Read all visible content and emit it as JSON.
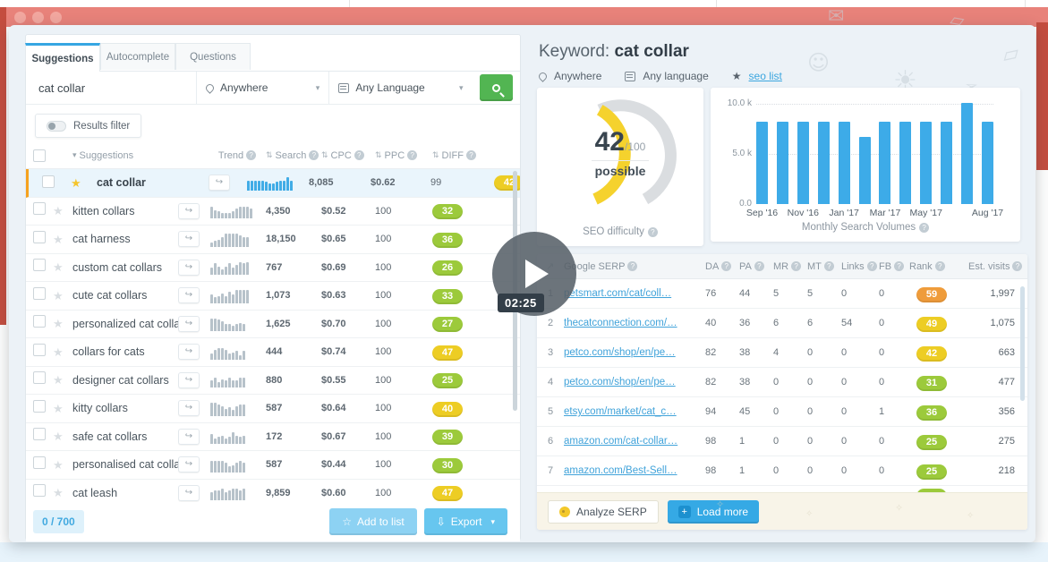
{
  "page": {
    "video_time": "02:25"
  },
  "left_panel": {
    "tabs": [
      {
        "label": "Suggestions",
        "active": true
      },
      {
        "label": "Autocomplete",
        "active": false
      },
      {
        "label": "Questions",
        "active": false
      }
    ],
    "search": {
      "query": "cat collar",
      "location": "Anywhere",
      "language": "Any Language"
    },
    "results_filter_label": "Results filter",
    "table": {
      "headers": {
        "suggestions": "Suggestions",
        "trend": "Trend",
        "search": "Search",
        "cpc": "CPC",
        "ppc": "PPC",
        "diff": "DIFF"
      },
      "rows": [
        {
          "keyword": "cat collar",
          "starred": true,
          "selected": true,
          "trend": [
            7,
            7,
            7,
            7,
            7,
            6,
            5,
            5,
            6,
            7,
            7,
            9,
            7
          ],
          "search": "8,085",
          "cpc": "$0.62",
          "ppc": "99",
          "diff": "42",
          "diff_color": "yellow"
        },
        {
          "keyword": "kitten collars",
          "starred": false,
          "selected": false,
          "trend": [
            8,
            6,
            5,
            4,
            4,
            4,
            5,
            7,
            8,
            8,
            8,
            7
          ],
          "search": "4,350",
          "cpc": "$0.52",
          "ppc": "100",
          "diff": "32",
          "diff_color": "green"
        },
        {
          "keyword": "cat harness",
          "starred": false,
          "selected": false,
          "trend": [
            3,
            4,
            5,
            7,
            9,
            9,
            9,
            9,
            8,
            7,
            7
          ],
          "search": "18,150",
          "cpc": "$0.65",
          "ppc": "100",
          "diff": "36",
          "diff_color": "green"
        },
        {
          "keyword": "custom cat collars",
          "starred": false,
          "selected": false,
          "trend": [
            5,
            8,
            6,
            4,
            6,
            8,
            5,
            7,
            9,
            8,
            9
          ],
          "search": "767",
          "cpc": "$0.69",
          "ppc": "100",
          "diff": "26",
          "diff_color": "green"
        },
        {
          "keyword": "cute cat collars",
          "starred": false,
          "selected": false,
          "trend": [
            6,
            4,
            5,
            7,
            5,
            8,
            6,
            9,
            9,
            9,
            9
          ],
          "search": "1,073",
          "cpc": "$0.63",
          "ppc": "100",
          "diff": "33",
          "diff_color": "green"
        },
        {
          "keyword": "personalized cat collars",
          "starred": false,
          "selected": false,
          "trend": [
            9,
            9,
            8,
            7,
            5,
            5,
            4,
            5,
            6,
            5
          ],
          "search": "1,625",
          "cpc": "$0.70",
          "ppc": "100",
          "diff": "27",
          "diff_color": "green"
        },
        {
          "keyword": "collars for cats",
          "starred": false,
          "selected": false,
          "trend": [
            4,
            7,
            8,
            8,
            7,
            4,
            5,
            6,
            3,
            6
          ],
          "search": "444",
          "cpc": "$0.74",
          "ppc": "100",
          "diff": "47",
          "diff_color": "yellow"
        },
        {
          "keyword": "designer cat collars",
          "starred": false,
          "selected": false,
          "trend": [
            5,
            7,
            4,
            6,
            5,
            7,
            5,
            5,
            7,
            7
          ],
          "search": "880",
          "cpc": "$0.55",
          "ppc": "100",
          "diff": "25",
          "diff_color": "green"
        },
        {
          "keyword": "kitty collars",
          "starred": false,
          "selected": false,
          "trend": [
            9,
            9,
            8,
            7,
            5,
            6,
            4,
            7,
            8,
            8
          ],
          "search": "587",
          "cpc": "$0.64",
          "ppc": "100",
          "diff": "40",
          "diff_color": "yellow"
        },
        {
          "keyword": "safe cat collars",
          "starred": false,
          "selected": false,
          "trend": [
            7,
            4,
            5,
            6,
            4,
            5,
            8,
            6,
            5,
            6
          ],
          "search": "172",
          "cpc": "$0.67",
          "ppc": "100",
          "diff": "39",
          "diff_color": "green"
        },
        {
          "keyword": "personalised cat collars",
          "starred": false,
          "selected": false,
          "trend": [
            8,
            8,
            8,
            8,
            7,
            4,
            5,
            7,
            8,
            7
          ],
          "search": "587",
          "cpc": "$0.44",
          "ppc": "100",
          "diff": "30",
          "diff_color": "green"
        },
        {
          "keyword": "cat leash",
          "starred": false,
          "selected": false,
          "trend": [
            6,
            7,
            7,
            8,
            6,
            7,
            8,
            8,
            7,
            8
          ],
          "search": "9,859",
          "cpc": "$0.60",
          "ppc": "100",
          "diff": "47",
          "diff_color": "yellow"
        }
      ]
    },
    "footer": {
      "count": "0 / 700",
      "add_to_list": "Add to list",
      "export": "Export"
    }
  },
  "right_panel": {
    "header": {
      "label": "Keyword:",
      "keyword": "cat collar",
      "location": "Anywhere",
      "language": "Any language",
      "list_link": "seo list"
    },
    "difficulty": {
      "score": "42",
      "denominator": "/100",
      "verdict": "possible",
      "caption": "SEO difficulty"
    },
    "chart_data": {
      "type": "bar",
      "title": "Monthly Search Volumes",
      "categories": [
        "Sep '16",
        "Oct '16",
        "Nov '16",
        "Dec '16",
        "Jan '17",
        "Feb '17",
        "Mar '17",
        "Apr '17",
        "May '17",
        "Jun '17",
        "Jul '17",
        "Aug '17"
      ],
      "values": [
        8200,
        8200,
        8200,
        8200,
        8200,
        6700,
        8200,
        8200,
        8200,
        8200,
        10100,
        8200
      ],
      "ylim": [
        0,
        10500
      ],
      "yticks": [
        "10.0 k",
        "5.0 k",
        "0.0"
      ],
      "tick_labels": [
        "Sep '16",
        "Nov '16",
        "Jan '17",
        "Mar '17",
        "May '17",
        "Aug '17"
      ],
      "tick_positions": [
        0,
        2,
        4,
        6,
        8,
        11
      ],
      "bar_color": "#3dabe8",
      "grid": true
    },
    "serp": {
      "headers": [
        "Google SERP",
        "DA",
        "PA",
        "MR",
        "MT",
        "Links",
        "FB",
        "Rank",
        "Est. visits"
      ],
      "rows": [
        {
          "pos": "1",
          "url": "petsmart.com/cat/coll…",
          "da": "76",
          "pa": "44",
          "mr": "5",
          "mt": "5",
          "links": "0",
          "fb": "0",
          "rank": "59",
          "rank_color": "orange",
          "visits": "1,997"
        },
        {
          "pos": "2",
          "url": "thecatconnection.com/…",
          "da": "40",
          "pa": "36",
          "mr": "6",
          "mt": "6",
          "links": "54",
          "fb": "0",
          "rank": "49",
          "rank_color": "yellow",
          "visits": "1,075"
        },
        {
          "pos": "3",
          "url": "petco.com/shop/en/pe…",
          "da": "82",
          "pa": "38",
          "mr": "4",
          "mt": "0",
          "links": "0",
          "fb": "0",
          "rank": "42",
          "rank_color": "yellow",
          "visits": "663"
        },
        {
          "pos": "4",
          "url": "petco.com/shop/en/pe…",
          "da": "82",
          "pa": "38",
          "mr": "0",
          "mt": "0",
          "links": "0",
          "fb": "0",
          "rank": "31",
          "rank_color": "green",
          "visits": "477"
        },
        {
          "pos": "5",
          "url": "etsy.com/market/cat_c…",
          "da": "94",
          "pa": "45",
          "mr": "0",
          "mt": "0",
          "links": "0",
          "fb": "1",
          "rank": "36",
          "rank_color": "green",
          "visits": "356"
        },
        {
          "pos": "6",
          "url": "amazon.com/cat-collar…",
          "da": "98",
          "pa": "1",
          "mr": "0",
          "mt": "0",
          "links": "0",
          "fb": "0",
          "rank": "25",
          "rank_color": "green",
          "visits": "275"
        },
        {
          "pos": "7",
          "url": "amazon.com/Best-Sell…",
          "da": "98",
          "pa": "1",
          "mr": "0",
          "mt": "0",
          "links": "0",
          "fb": "0",
          "rank": "25",
          "rank_color": "green",
          "visits": "218"
        }
      ],
      "partial_row_rank_color": "green",
      "footer": {
        "analyze": "Analyze SERP",
        "load_more": "Load more"
      }
    }
  },
  "colors": {
    "coral_header": "#e8827a",
    "dark_red": "#c44d3f",
    "brand_green": "#52b552",
    "accent_blue": "#38a9e4",
    "diff_green": "#9cca3b",
    "diff_yellow": "#edcd24",
    "diff_orange": "#ef9c3b",
    "gauge_yellow": "#f5d22d"
  }
}
